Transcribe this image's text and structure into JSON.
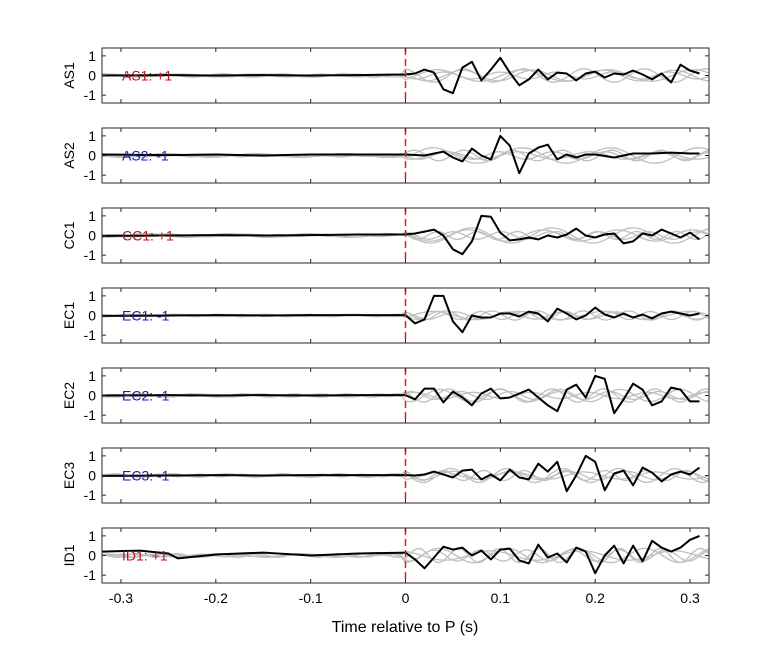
{
  "chart_data": {
    "type": "line",
    "xlabel": "Time relative to P (s)",
    "xlim": [
      -0.32,
      0.32
    ],
    "xticks": [
      -0.3,
      -0.2,
      -0.1,
      0,
      0.1,
      0.2,
      0.3
    ],
    "xtick_labels": [
      "-0.3",
      "-0.2",
      "-0.1",
      "0",
      "0.1",
      "0.2",
      "0.3"
    ],
    "ylim": [
      -1.4,
      1.4
    ],
    "yticks": [
      1,
      0,
      -1
    ],
    "ytick_labels": [
      "1",
      "0",
      "-1"
    ],
    "reference_line": {
      "x": 0,
      "color": "#e0201a",
      "style": "dashed"
    },
    "colors": {
      "main": "#000000",
      "background": "#bfbfbf",
      "positive": "#b3141b",
      "negative": "#1a1ab0"
    },
    "panels": [
      {
        "ylabel": "AS1",
        "annotation": "AS1: +1",
        "polarity": "positive"
      },
      {
        "ylabel": "AS2",
        "annotation": "AS2: -1",
        "polarity": "negative"
      },
      {
        "ylabel": "CC1",
        "annotation": "CC1: +1",
        "polarity": "positive"
      },
      {
        "ylabel": "EC1",
        "annotation": "EC1: -1",
        "polarity": "negative"
      },
      {
        "ylabel": "EC2",
        "annotation": "EC2: -1",
        "polarity": "negative"
      },
      {
        "ylabel": "EC3",
        "annotation": "EC3: -1",
        "polarity": "negative"
      },
      {
        "ylabel": "ID1",
        "annotation": "ID1: +1",
        "polarity": "positive"
      }
    ],
    "series": [
      {
        "panel": "AS1",
        "x": [
          -0.32,
          -0.25,
          -0.2,
          -0.15,
          -0.1,
          -0.05,
          0,
          0.01,
          0.02,
          0.03,
          0.04,
          0.05,
          0.06,
          0.07,
          0.08,
          0.09,
          0.1,
          0.11,
          0.12,
          0.13,
          0.14,
          0.15,
          0.16,
          0.17,
          0.18,
          0.19,
          0.2,
          0.21,
          0.22,
          0.23,
          0.24,
          0.25,
          0.26,
          0.27,
          0.28,
          0.29,
          0.3,
          0.31
        ],
        "y": [
          0,
          0.02,
          0,
          0.02,
          0,
          0.02,
          0.05,
          0.1,
          0.3,
          0.15,
          -0.7,
          -0.9,
          0.4,
          0.7,
          -0.25,
          0.3,
          0.9,
          0.15,
          -0.5,
          -0.2,
          0.3,
          -0.2,
          0.15,
          0.1,
          -0.25,
          0.1,
          0.2,
          -0.1,
          0.1,
          0.05,
          0.25,
          0.05,
          -0.2,
          0.1,
          -0.35,
          0.55,
          0.25,
          0.1
        ]
      },
      {
        "panel": "AS2",
        "x": [
          -0.32,
          -0.25,
          -0.2,
          -0.15,
          -0.1,
          -0.05,
          0,
          0.02,
          0.04,
          0.05,
          0.06,
          0.07,
          0.08,
          0.09,
          0.1,
          0.11,
          0.12,
          0.13,
          0.14,
          0.15,
          0.16,
          0.17,
          0.18,
          0.19,
          0.2,
          0.22,
          0.24,
          0.26,
          0.28,
          0.3,
          0.31
        ],
        "y": [
          0.05,
          0.02,
          0.05,
          0,
          0.05,
          0.05,
          0.05,
          0,
          0.2,
          -0.1,
          -0.3,
          0.35,
          0,
          -0.2,
          1.0,
          0.5,
          -0.9,
          0.1,
          0.4,
          0.55,
          -0.2,
          0.05,
          -0.1,
          0.05,
          0.05,
          -0.1,
          0.1,
          0.1,
          0.15,
          0.1,
          0.1
        ]
      },
      {
        "panel": "CC1",
        "x": [
          -0.32,
          -0.25,
          -0.2,
          -0.15,
          -0.1,
          -0.05,
          0,
          0.01,
          0.02,
          0.03,
          0.04,
          0.05,
          0.06,
          0.07,
          0.08,
          0.09,
          0.1,
          0.11,
          0.12,
          0.13,
          0.14,
          0.15,
          0.16,
          0.17,
          0.18,
          0.19,
          0.2,
          0.21,
          0.22,
          0.23,
          0.24,
          0.25,
          0.26,
          0.27,
          0.28,
          0.29,
          0.3,
          0.31
        ],
        "y": [
          -0.02,
          0,
          0.02,
          0,
          0.02,
          0.05,
          0.05,
          0.1,
          0.2,
          0.3,
          0,
          -0.7,
          -0.95,
          -0.3,
          1.0,
          0.95,
          0.15,
          -0.25,
          -0.2,
          -0.1,
          -0.2,
          0,
          -0.1,
          0.05,
          0.35,
          0,
          -0.1,
          0.05,
          0.1,
          -0.4,
          -0.3,
          0.1,
          0,
          0.3,
          0.1,
          -0.1,
          0.15,
          -0.2
        ]
      },
      {
        "panel": "EC1",
        "x": [
          -0.32,
          -0.25,
          -0.2,
          -0.15,
          -0.1,
          -0.05,
          0,
          0.01,
          0.02,
          0.03,
          0.04,
          0.05,
          0.06,
          0.07,
          0.08,
          0.09,
          0.1,
          0.11,
          0.12,
          0.13,
          0.14,
          0.15,
          0.16,
          0.17,
          0.18,
          0.19,
          0.2,
          0.21,
          0.22,
          0.23,
          0.24,
          0.25,
          0.26,
          0.27,
          0.28,
          0.29,
          0.3,
          0.31
        ],
        "y": [
          -0.02,
          0,
          0.02,
          0,
          0.02,
          0.02,
          0.02,
          -0.4,
          -0.2,
          1.0,
          1.0,
          -0.3,
          -0.85,
          0,
          -0.1,
          -0.1,
          0.1,
          0.1,
          -0.05,
          0.2,
          0.1,
          -0.3,
          0.35,
          0.1,
          -0.2,
          0,
          0.4,
          0.05,
          -0.1,
          0.1,
          -0.1,
          0.05,
          -0.15,
          0.1,
          0.2,
          0.1,
          0,
          0.1
        ]
      },
      {
        "panel": "EC2",
        "x": [
          -0.32,
          -0.25,
          -0.2,
          -0.15,
          -0.1,
          -0.05,
          0,
          0.01,
          0.02,
          0.03,
          0.04,
          0.05,
          0.06,
          0.07,
          0.08,
          0.09,
          0.1,
          0.11,
          0.12,
          0.13,
          0.14,
          0.15,
          0.16,
          0.17,
          0.18,
          0.19,
          0.2,
          0.21,
          0.22,
          0.23,
          0.24,
          0.25,
          0.26,
          0.27,
          0.28,
          0.29,
          0.3,
          0.31
        ],
        "y": [
          0,
          0.02,
          0,
          0.02,
          0,
          0.02,
          0.02,
          -0.2,
          0.35,
          0.35,
          -0.35,
          0.2,
          -0.1,
          -0.5,
          0.1,
          0.35,
          -0.15,
          -0.1,
          0.1,
          0.3,
          -0.1,
          -0.5,
          -0.8,
          0.3,
          0.55,
          -0.1,
          1.0,
          0.85,
          -0.9,
          -0.2,
          0.6,
          0.3,
          -0.5,
          -0.3,
          0.4,
          0.3,
          -0.3,
          -0.3
        ]
      },
      {
        "panel": "EC3",
        "x": [
          -0.32,
          -0.25,
          -0.2,
          -0.15,
          -0.1,
          -0.05,
          0,
          0.01,
          0.02,
          0.03,
          0.04,
          0.05,
          0.06,
          0.07,
          0.08,
          0.09,
          0.1,
          0.11,
          0.12,
          0.13,
          0.14,
          0.15,
          0.16,
          0.17,
          0.18,
          0.19,
          0.2,
          0.21,
          0.22,
          0.23,
          0.24,
          0.25,
          0.26,
          0.27,
          0.28,
          0.29,
          0.3,
          0.31
        ],
        "y": [
          -0.02,
          0,
          0.02,
          0,
          0.02,
          0.02,
          0.02,
          0,
          0.05,
          0.2,
          0.05,
          -0.1,
          0.25,
          0.3,
          -0.2,
          0.05,
          -0.25,
          0.3,
          -0.1,
          -0.2,
          0.6,
          0.2,
          0.7,
          -0.8,
          0,
          1.0,
          0.7,
          -0.75,
          0.1,
          0.25,
          -0.5,
          0.4,
          0.15,
          -0.3,
          0.05,
          0.2,
          0.05,
          0.4
        ]
      },
      {
        "panel": "ID1",
        "x": [
          -0.32,
          -0.28,
          -0.25,
          -0.24,
          -0.2,
          -0.15,
          -0.1,
          -0.05,
          0,
          0.01,
          0.02,
          0.03,
          0.04,
          0.05,
          0.06,
          0.07,
          0.08,
          0.09,
          0.1,
          0.11,
          0.12,
          0.13,
          0.14,
          0.15,
          0.16,
          0.17,
          0.18,
          0.19,
          0.2,
          0.21,
          0.22,
          0.23,
          0.24,
          0.25,
          0.26,
          0.27,
          0.28,
          0.29,
          0.3,
          0.31
        ],
        "y": [
          0.2,
          0.25,
          0.1,
          -0.15,
          0.05,
          0.15,
          0,
          0.1,
          0.15,
          -0.2,
          -0.65,
          -0.1,
          0.45,
          0.3,
          0.4,
          0,
          0.25,
          -0.2,
          0.3,
          0.35,
          -0.25,
          -0.4,
          0.55,
          -0.1,
          0.1,
          -0.35,
          0.4,
          0.2,
          -0.9,
          0,
          0.5,
          -0.4,
          0.5,
          -0.3,
          0.75,
          0.4,
          0.2,
          0.4,
          0.8,
          1.0
        ]
      }
    ]
  }
}
